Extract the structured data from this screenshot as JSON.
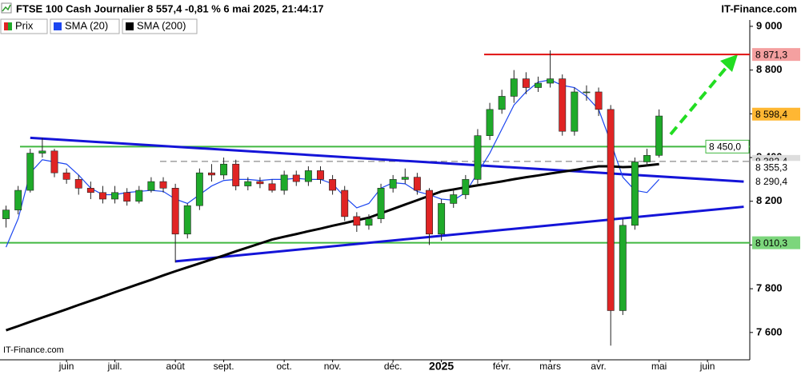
{
  "chart_data": {
    "type": "candlestick",
    "title": "FTSE 100 Cash Journalier 8 557,4 -0,81 % 6 mai 2025, 21:44:17",
    "source": "IT-Finance.com",
    "watermark": "IT-Finance.com",
    "categories": [
      null,
      null,
      null,
      null,
      null,
      "juin",
      null,
      null,
      null,
      "juil.",
      null,
      null,
      null,
      null,
      "août",
      null,
      null,
      null,
      "sept.",
      null,
      null,
      null,
      null,
      "oct.",
      null,
      null,
      null,
      "nov.",
      null,
      null,
      null,
      null,
      "déc.",
      null,
      null,
      null,
      "2025",
      null,
      null,
      null,
      null,
      "févr.",
      null,
      null,
      null,
      "mars",
      null,
      null,
      null,
      "avr.",
      null,
      null,
      null,
      null,
      "mai",
      null,
      null,
      null,
      "juin",
      null,
      null,
      null
    ],
    "price": {
      "name": "Prix",
      "up_color": "#1faa2a",
      "down_color": "#e02424",
      "open": [
        8120,
        8160,
        8250,
        8420,
        8430,
        8330,
        8300,
        8260,
        8240,
        8210,
        8240,
        8200,
        8250,
        8290,
        8260,
        8050,
        8180,
        8330,
        8320,
        8370,
        8270,
        8290,
        8280,
        8250,
        8320,
        8290,
        8340,
        8300,
        8250,
        8130,
        8090,
        8120,
        8260,
        8300,
        8310,
        8250,
        8050,
        8190,
        8230,
        8300,
        8500,
        8620,
        8680,
        8760,
        8720,
        8740,
        8760,
        8520,
        8700,
        8700,
        8620,
        7700,
        8090,
        8380,
        8410,
        null,
        null,
        null,
        null,
        null,
        null,
        null
      ],
      "high": [
        8180,
        8270,
        8440,
        8490,
        8440,
        8350,
        8320,
        8290,
        8270,
        8270,
        8260,
        8270,
        8310,
        8310,
        8280,
        8190,
        8350,
        8370,
        8400,
        8390,
        8310,
        8310,
        8300,
        8340,
        8340,
        8360,
        8360,
        8320,
        8270,
        8150,
        8140,
        8280,
        8320,
        8350,
        8330,
        8260,
        8210,
        8250,
        8320,
        8530,
        8650,
        8710,
        8800,
        8790,
        8770,
        8890,
        8780,
        8720,
        8730,
        8720,
        8640,
        8120,
        8400,
        8440,
        8620,
        null,
        null,
        null,
        null,
        null,
        null,
        null
      ],
      "low": [
        8080,
        8140,
        8240,
        8400,
        8310,
        8280,
        8230,
        8210,
        8190,
        8190,
        8180,
        8190,
        8240,
        8240,
        7920,
        8030,
        8160,
        8290,
        8300,
        8250,
        8250,
        8260,
        8240,
        8230,
        8270,
        8270,
        8280,
        8230,
        8110,
        8060,
        8070,
        8100,
        8240,
        8280,
        8230,
        8000,
        8020,
        8170,
        8210,
        8280,
        8480,
        8600,
        8650,
        8690,
        8700,
        8720,
        8500,
        8500,
        8660,
        8590,
        7540,
        7680,
        8070,
        8360,
        8400,
        null,
        null,
        null,
        null,
        null,
        null,
        null
      ],
      "close": [
        8160,
        8250,
        8420,
        8430,
        8330,
        8300,
        8260,
        8240,
        8210,
        8240,
        8200,
        8250,
        8290,
        8260,
        8050,
        8180,
        8330,
        8320,
        8370,
        8270,
        8290,
        8280,
        8250,
        8320,
        8290,
        8340,
        8300,
        8250,
        8130,
        8090,
        8120,
        8260,
        8300,
        8310,
        8250,
        8050,
        8190,
        8230,
        8300,
        8500,
        8620,
        8680,
        8760,
        8720,
        8740,
        8760,
        8520,
        8700,
        8700,
        8620,
        7700,
        8090,
        8380,
        8410,
        8590,
        null,
        null,
        null,
        null,
        null,
        null,
        null
      ],
      "last": {
        "value": 8598.4,
        "label": "8 598,4"
      },
      "tag_color": "#ffb733"
    },
    "series": [
      {
        "name": "SMA (20)",
        "color": "#1c46f0",
        "values": [
          7990,
          8120,
          8330,
          8390,
          8380,
          8370,
          8320,
          8260,
          8230,
          8230,
          8240,
          8245,
          8250,
          8245,
          8210,
          8190,
          8230,
          8270,
          8295,
          8300,
          8300,
          8295,
          8300,
          8300,
          8305,
          8300,
          8300,
          8280,
          8220,
          8170,
          8190,
          8260,
          8285,
          8280,
          8245,
          8230,
          8210,
          8205,
          8240,
          8330,
          8420,
          8530,
          8640,
          8700,
          8745,
          8755,
          8730,
          8720,
          8680,
          8620,
          8470,
          8310,
          8250,
          8240,
          8300,
          null,
          null,
          null,
          null,
          null,
          null,
          null
        ],
        "last": {
          "value": 8290.4,
          "label": "8 290,4"
        }
      },
      {
        "name": "SMA (200)",
        "color": "#000000",
        "values": [
          7610,
          7629,
          7649,
          7668,
          7687,
          7706,
          7726,
          7745,
          7764,
          7784,
          7803,
          7822,
          7841,
          7861,
          7880,
          7898,
          7916,
          7934,
          7952,
          7971,
          7989,
          8007,
          8025,
          8038,
          8050,
          8063,
          8075,
          8088,
          8100,
          8113,
          8125,
          8145,
          8165,
          8185,
          8205,
          8225,
          8245,
          8254,
          8264,
          8273,
          8282,
          8291,
          8301,
          8310,
          8318,
          8327,
          8335,
          8343,
          8352,
          8360,
          8360,
          8356,
          8358,
          8364,
          8370,
          null,
          null,
          null,
          null,
          null,
          null,
          null
        ],
        "last": {
          "value": 8355.3,
          "label": "8 355,3"
        }
      }
    ],
    "trendlines": [
      {
        "color": "#1414d8",
        "values": [
          null,
          null,
          8490,
          null,
          null,
          null,
          null,
          null,
          null,
          null,
          null,
          null,
          null,
          null,
          null,
          null,
          null,
          null,
          null,
          null,
          null,
          null,
          null,
          null,
          null,
          null,
          null,
          null,
          null,
          null,
          null,
          null,
          null,
          null,
          null,
          null,
          null,
          null,
          null,
          null,
          null,
          null,
          null,
          null,
          null,
          null,
          null,
          null,
          null,
          null,
          null,
          null,
          null,
          null,
          null,
          null,
          null,
          null,
          null,
          null,
          null,
          8290
        ]
      },
      {
        "color": "#1414d8",
        "values": [
          null,
          null,
          null,
          null,
          null,
          null,
          null,
          null,
          null,
          null,
          null,
          null,
          null,
          null,
          7925,
          null,
          null,
          null,
          null,
          null,
          null,
          null,
          null,
          null,
          null,
          null,
          null,
          null,
          null,
          null,
          null,
          null,
          null,
          null,
          null,
          null,
          null,
          null,
          null,
          null,
          null,
          null,
          null,
          null,
          null,
          null,
          null,
          null,
          null,
          null,
          null,
          null,
          null,
          null,
          null,
          null,
          null,
          null,
          null,
          null,
          null,
          8175
        ]
      }
    ],
    "levels": [
      {
        "value": 8871.3,
        "label": "8 871,3",
        "color": "#e01010"
      },
      {
        "value": 8450.0,
        "label": "8 450,0",
        "color": "#40b840"
      },
      {
        "value": 8382.4,
        "label": "8 382,4",
        "color": "#707070"
      },
      {
        "value": 8010.3,
        "label": "8 010,3",
        "color": "#40b840"
      }
    ],
    "ylim": [
      7475,
      9029
    ],
    "yticks": [
      {
        "value": 7600,
        "label": "7 600"
      },
      {
        "value": 7800,
        "label": "7 800"
      },
      {
        "value": 8000,
        "label": "8 000"
      },
      {
        "value": 8200,
        "label": "8 200"
      },
      {
        "value": 8400,
        "label": "8 400"
      },
      {
        "value": 8600,
        "label": "8 600"
      },
      {
        "value": 8800,
        "label": "8 800"
      },
      {
        "value": 9000,
        "label": "9 000"
      }
    ]
  }
}
